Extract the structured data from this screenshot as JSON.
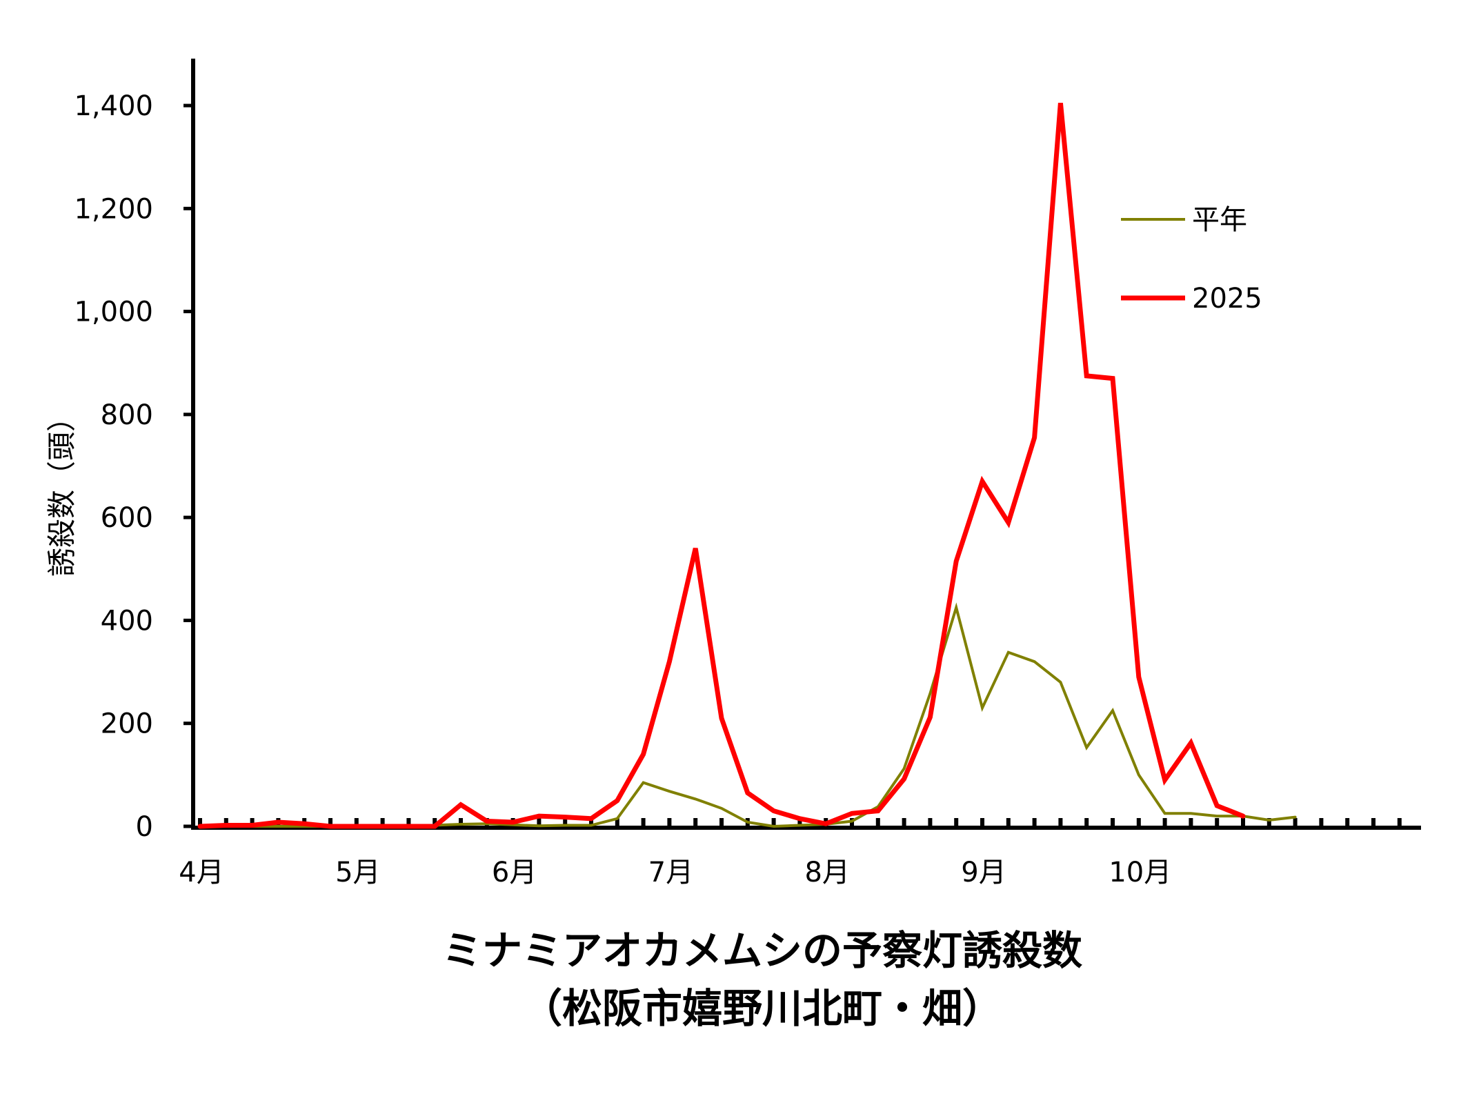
{
  "chart_data": {
    "type": "line",
    "title": "ミナミアオカメムシの予察灯誘殺数",
    "subtitle": "（松阪市嬉野川北町・畑）",
    "ylabel": "誘殺数（頭）",
    "xlabel": "",
    "ylim": [
      0,
      1500
    ],
    "y_ticks": [
      0,
      200,
      400,
      600,
      800,
      1000,
      1200,
      1400
    ],
    "y_tick_labels": [
      "0",
      "200",
      "400",
      "600",
      "800",
      "1,000",
      "1,200",
      "1,400"
    ],
    "x_range": [
      0,
      48
    ],
    "months": [
      {
        "label": "4月",
        "x": 0
      },
      {
        "label": "5月",
        "x": 6
      },
      {
        "label": "6月",
        "x": 12
      },
      {
        "label": "7月",
        "x": 18
      },
      {
        "label": "8月",
        "x": 24
      },
      {
        "label": "9月",
        "x": 30
      },
      {
        "label": "10月",
        "x": 36
      }
    ],
    "legend_position": "top-right",
    "series": [
      {
        "name": "平年",
        "color": "#808000",
        "values": [
          0,
          0,
          0,
          0,
          0,
          0,
          0,
          0,
          0,
          2,
          4,
          5,
          3,
          1,
          2,
          2,
          15,
          85,
          68,
          53,
          35,
          8,
          0,
          2,
          4,
          10,
          38,
          112,
          258,
          425,
          230,
          338,
          320,
          280,
          153,
          225,
          100,
          25,
          25,
          20,
          20,
          12,
          18
        ]
      },
      {
        "name": "2025",
        "color": "#ff0000",
        "values": [
          0,
          2,
          2,
          8,
          5,
          0,
          0,
          0,
          0,
          0,
          42,
          10,
          8,
          20,
          18,
          15,
          50,
          140,
          320,
          540,
          210,
          65,
          30,
          15,
          5,
          25,
          30,
          92,
          212,
          515,
          670,
          590,
          755,
          1405,
          875,
          870,
          290,
          90,
          162,
          40,
          20
        ]
      }
    ]
  }
}
